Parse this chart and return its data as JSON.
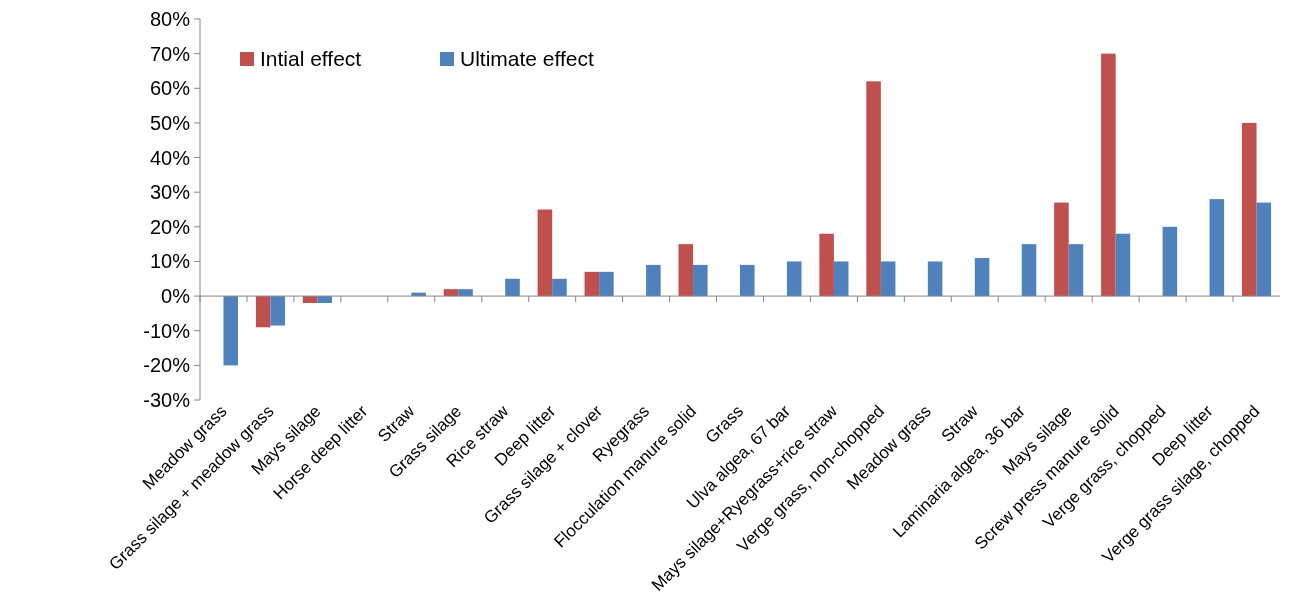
{
  "chart_data": {
    "type": "bar",
    "categories": [
      "Meadow grass",
      "Grass silage + meadow grass",
      "Mays silage",
      "Horse deep litter",
      "Straw",
      "Grass silage",
      "Rice straw",
      "Deep litter",
      "Grass silage + clover",
      "Ryegrass",
      "Flocculation manure solid",
      "Grass",
      "Ulva algea, 67 bar",
      "Mays silage+Ryegrass+rice straw",
      "Verge grass, non-chopped",
      "Meadow grass",
      "Straw",
      "Laminaria algea, 36 bar",
      "Mays silage",
      "Screw press manure solid",
      "Verge grass, chopped",
      "Deep litter",
      "Verge grass silage, chopped"
    ],
    "series": [
      {
        "name": "Intial effect",
        "color": "#c0504d",
        "values": [
          null,
          -9,
          -2,
          null,
          null,
          2,
          null,
          25,
          7,
          null,
          15,
          null,
          null,
          18,
          62,
          null,
          null,
          null,
          27,
          70,
          null,
          null,
          50
        ]
      },
      {
        "name": "Ultimate effect",
        "color": "#4f81bd",
        "values": [
          -20,
          -8.5,
          -2,
          null,
          1,
          2,
          5,
          5,
          7,
          9,
          9,
          9,
          10,
          10,
          10,
          10,
          11,
          15,
          15,
          18,
          20,
          28,
          27
        ]
      }
    ],
    "ylim": [
      -30,
      80
    ],
    "yticks": [
      {
        "value": -30,
        "label": "-30%"
      },
      {
        "value": -20,
        "label": "-20%"
      },
      {
        "value": -10,
        "label": "-10%"
      },
      {
        "value": 0,
        "label": "0%"
      },
      {
        "value": 10,
        "label": "10%"
      },
      {
        "value": 20,
        "label": "20%"
      },
      {
        "value": 30,
        "label": "30%"
      },
      {
        "value": 40,
        "label": "40%"
      },
      {
        "value": 50,
        "label": "50%"
      },
      {
        "value": 60,
        "label": "60%"
      },
      {
        "value": 70,
        "label": "70%"
      },
      {
        "value": 80,
        "label": "80%"
      }
    ],
    "legend": "top left"
  }
}
